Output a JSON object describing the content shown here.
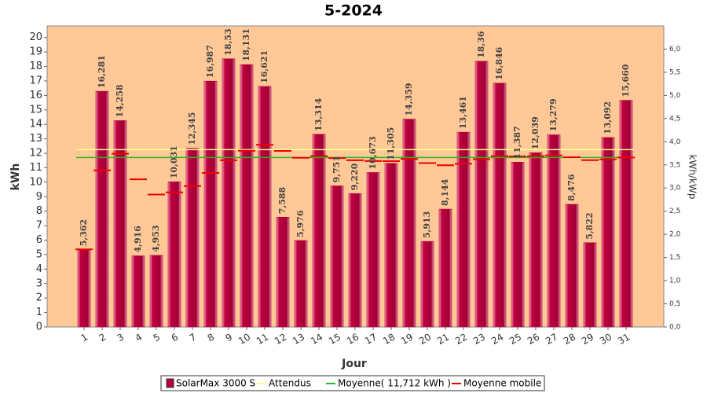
{
  "chart_data": {
    "type": "bar",
    "title": "5-2024",
    "x_label": "Jour",
    "y_label": "kWh",
    "y2_label": "kWh/kWp",
    "categories": [
      "1",
      "2",
      "3",
      "4",
      "5",
      "6",
      "7",
      "8",
      "9",
      "10",
      "11",
      "12",
      "13",
      "14",
      "15",
      "16",
      "17",
      "18",
      "19",
      "20",
      "21",
      "22",
      "23",
      "24",
      "25",
      "26",
      "27",
      "28",
      "29",
      "30",
      "31"
    ],
    "series": [
      {
        "name": "SolarMax 3000 S",
        "color": "#b5003c",
        "values": [
          5.362,
          16.281,
          14.258,
          4.916,
          4.953,
          10.031,
          12.345,
          16.987,
          18.53,
          18.131,
          16.621,
          7.588,
          5.976,
          13.314,
          9.751,
          9.22,
          10.673,
          11.305,
          14.359,
          5.913,
          8.144,
          13.461,
          18.36,
          16.846,
          11.387,
          12.039,
          13.279,
          8.476,
          5.822,
          13.092,
          15.66
        ],
        "value_labels": [
          "5,362",
          "16,281",
          "14,258",
          "4,916",
          "4,953",
          "10,031",
          "12,345",
          "16,987",
          "18,53",
          "18,131",
          "16,621",
          "7,588",
          "5,976",
          "13,314",
          "9,751",
          "9,220",
          "10,673",
          "11,305",
          "14,359",
          "5,913",
          "8,144",
          "13,461",
          "18,36",
          "16,846",
          "11,387",
          "12,039",
          "13,279",
          "8,476",
          "5,822",
          "13,092",
          "15,660"
        ]
      },
      {
        "name": "Attendus",
        "color": "#ffff88",
        "value": 12.25
      },
      {
        "name": "Moyenne( 11,712 kWh )",
        "color": "#22bb22",
        "value": 11.712
      },
      {
        "name": "Moyenne mobile",
        "color": "#ee0000",
        "values": [
          5.362,
          10.822,
          11.967,
          10.204,
          9.154,
          9.3,
          9.735,
          10.642,
          11.518,
          12.179,
          12.583,
          12.167,
          11.691,
          11.807,
          11.67,
          11.517,
          11.467,
          11.458,
          11.611,
          11.326,
          11.174,
          11.278,
          11.586,
          11.805,
          11.788,
          11.798,
          11.853,
          11.732,
          11.529,
          11.581,
          11.712
        ]
      }
    ],
    "ylim": [
      0,
      20.8
    ],
    "yticks": [
      0,
      1,
      2,
      3,
      4,
      5,
      6,
      7,
      8,
      9,
      10,
      11,
      12,
      13,
      14,
      15,
      16,
      17,
      18,
      19,
      20
    ],
    "y2lim": [
      0,
      6.5
    ],
    "y2ticks": [
      {
        "value": 0,
        "label": "0,0"
      },
      {
        "value": 0.5,
        "label": "0,5"
      },
      {
        "value": 1,
        "label": "1,0"
      },
      {
        "value": 1.5,
        "label": "1,5"
      },
      {
        "value": 2,
        "label": "2,0"
      },
      {
        "value": 2.5,
        "label": "2,5"
      },
      {
        "value": 3,
        "label": "3,0"
      },
      {
        "value": 3.5,
        "label": "3,5"
      },
      {
        "value": 4,
        "label": "4,0"
      },
      {
        "value": 4.5,
        "label": "4,5"
      },
      {
        "value": 5,
        "label": "5,0"
      },
      {
        "value": 5.5,
        "label": "5,5"
      },
      {
        "value": 6,
        "label": "6,0"
      }
    ],
    "grid": false,
    "legend": "bottom",
    "plot_background": "#ffc896"
  }
}
